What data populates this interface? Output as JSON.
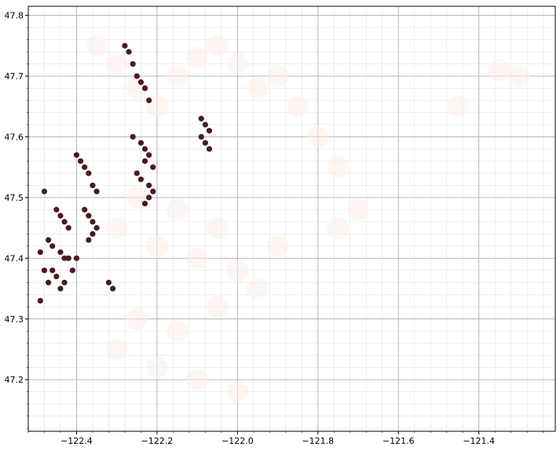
{
  "chart_data": {
    "type": "scatter",
    "title": "",
    "xlabel": "",
    "ylabel": "",
    "xlim": [
      -122.52,
      -121.21
    ],
    "ylim": [
      47.115,
      47.815
    ],
    "xticks": [
      -122.4,
      -122.2,
      -122.0,
      -121.8,
      -121.6,
      -121.4
    ],
    "xtick_labels": [
      "−122.4",
      "−122.2",
      "−122.0",
      "−121.8",
      "−121.6",
      "−121.4"
    ],
    "yticks": [
      47.2,
      47.3,
      47.4,
      47.5,
      47.6,
      47.7,
      47.8
    ],
    "ytick_labels": [
      "47.2",
      "47.3",
      "47.4",
      "47.5",
      "47.6",
      "47.7",
      "47.8"
    ],
    "grid": {
      "major": true,
      "minor": true
    },
    "colors": {
      "high": "#4a1a20",
      "low": "#fdeee8",
      "major_grid": "#b0b0b0",
      "minor_grid": "#e4e4e4"
    },
    "series": [
      {
        "values_level": "high",
        "x": [
          -122.48,
          -122.45,
          -122.44,
          -122.43,
          -122.42,
          -122.47,
          -122.46,
          -122.49,
          -122.44,
          -122.43,
          -122.42,
          -122.4,
          -122.41,
          -122.46,
          -122.48,
          -122.49,
          -122.43,
          -122.44,
          -122.45,
          -122.47,
          -122.4,
          -122.39,
          -122.38,
          -122.37,
          -122.36,
          -122.35,
          -122.38,
          -122.37,
          -122.36,
          -122.35,
          -122.36,
          -122.37,
          -122.28,
          -122.27,
          -122.26,
          -122.25,
          -122.24,
          -122.23,
          -122.22,
          -122.26,
          -122.24,
          -122.23,
          -122.22,
          -122.23,
          -122.25,
          -122.24,
          -122.22,
          -122.21,
          -122.23,
          -122.21,
          -122.22,
          -122.09,
          -122.08,
          -122.07,
          -122.09,
          -122.08,
          -122.07,
          -122.31,
          -122.32
        ],
        "y": [
          47.51,
          47.48,
          47.47,
          47.46,
          47.45,
          47.43,
          47.42,
          47.41,
          47.41,
          47.4,
          47.4,
          47.4,
          47.38,
          47.38,
          47.38,
          47.33,
          47.36,
          47.35,
          47.37,
          47.36,
          47.57,
          47.56,
          47.55,
          47.54,
          47.52,
          47.51,
          47.48,
          47.47,
          47.46,
          47.45,
          47.44,
          47.43,
          47.75,
          47.74,
          47.72,
          47.7,
          47.69,
          47.68,
          47.66,
          47.6,
          47.59,
          47.58,
          47.57,
          47.56,
          47.54,
          47.53,
          47.52,
          47.51,
          47.49,
          47.55,
          47.5,
          47.63,
          47.62,
          47.61,
          47.6,
          47.59,
          47.58,
          47.35,
          47.36
        ]
      },
      {
        "values_level": "low",
        "x": [
          -122.35,
          -122.3,
          -122.25,
          -122.2,
          -122.15,
          -122.1,
          -122.05,
          -122.0,
          -121.95,
          -121.9,
          -121.85,
          -121.8,
          -121.75,
          -122.3,
          -122.2,
          -122.1,
          -122.0,
          -121.9,
          -122.25,
          -122.15,
          -122.05,
          -121.95,
          -122.3,
          -122.2,
          -122.1,
          -122.0,
          -122.25,
          -122.15,
          -122.05,
          -121.3,
          -121.35,
          -121.45,
          -121.7,
          -121.75
        ],
        "y": [
          47.75,
          47.72,
          47.68,
          47.65,
          47.7,
          47.73,
          47.75,
          47.72,
          47.68,
          47.7,
          47.65,
          47.6,
          47.55,
          47.45,
          47.42,
          47.4,
          47.38,
          47.42,
          47.3,
          47.28,
          47.32,
          47.35,
          47.25,
          47.22,
          47.2,
          47.18,
          47.5,
          47.48,
          47.45,
          47.7,
          47.71,
          47.65,
          47.48,
          47.45
        ]
      }
    ]
  }
}
